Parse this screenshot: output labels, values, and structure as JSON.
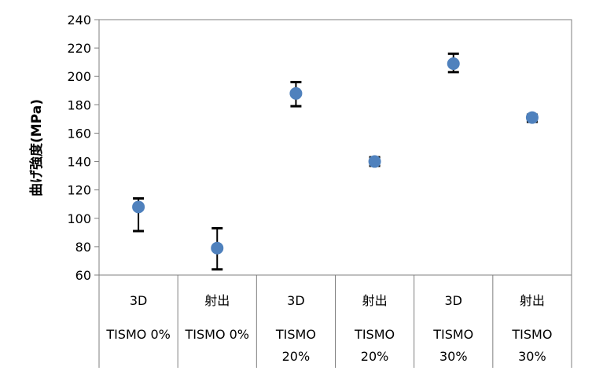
{
  "chart_data": {
    "type": "scatter",
    "ylabel": "曲げ強度(MPa)",
    "ylim": [
      60,
      240
    ],
    "yticks": [
      60,
      80,
      100,
      120,
      140,
      160,
      180,
      200,
      220,
      240
    ],
    "grid": false,
    "legend": "none",
    "marker_color": "#4f81bd",
    "errorbar_color": "#000000",
    "categories": [
      {
        "line1": "3D",
        "line2": "TISMO 0%"
      },
      {
        "line1": "射出",
        "line2": "TISMO 0%"
      },
      {
        "line1": "3D",
        "line2": "TISMO 20%"
      },
      {
        "line1": "射出",
        "line2": "TISMO 20%"
      },
      {
        "line1": "3D",
        "line2": "TISMO 30%"
      },
      {
        "line1": "射出",
        "line2": "TISMO 30%"
      }
    ],
    "values": [
      108,
      79,
      188,
      140,
      209,
      171
    ],
    "error_high": [
      114,
      93,
      196,
      143,
      216,
      173
    ],
    "error_low": [
      91,
      64,
      179,
      137,
      203,
      168
    ]
  }
}
